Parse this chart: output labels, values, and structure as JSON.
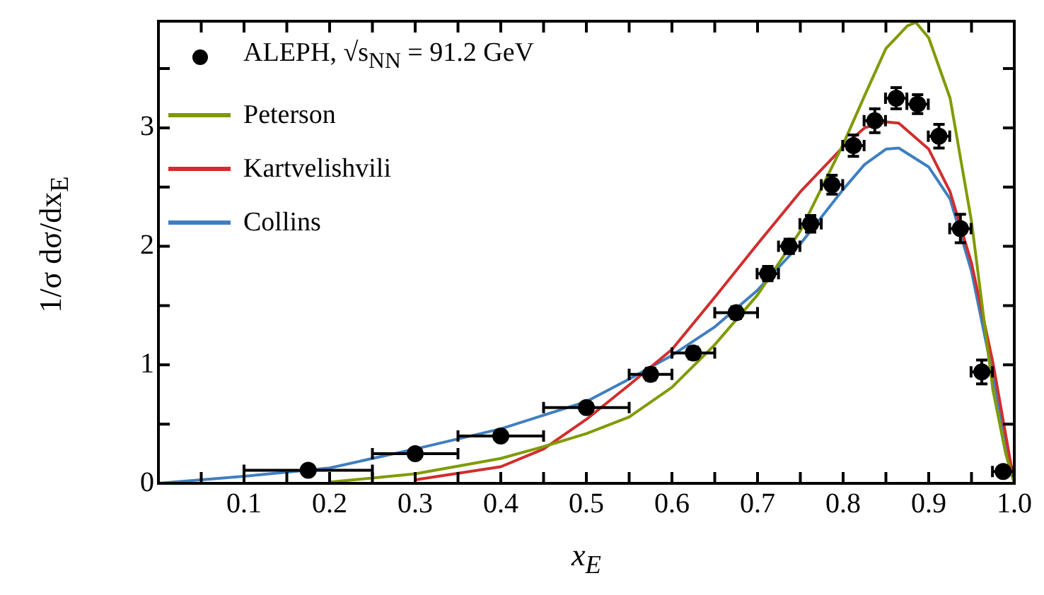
{
  "chart_data": {
    "type": "scatter",
    "xlabel": "x$_{E}$",
    "ylabel": "1/σ dσ/dx$_{E}$",
    "xlim": [
      0,
      1
    ],
    "ylim": [
      0,
      3.9
    ],
    "xticks": [
      {
        "value": 0.05,
        "label": null
      },
      0.1,
      {
        "value": 0.15,
        "label": null
      },
      0.2,
      {
        "value": 0.25,
        "label": null
      },
      0.3,
      {
        "value": 0.35,
        "label": null
      },
      0.4,
      {
        "value": 0.45,
        "label": null
      },
      0.5,
      {
        "value": 0.55,
        "label": null
      },
      0.6,
      {
        "value": 0.65,
        "label": null
      },
      0.7,
      {
        "value": 0.75,
        "label": null
      },
      0.8,
      {
        "value": 0.85,
        "label": null
      },
      0.9,
      {
        "value": 0.95,
        "label": null
      },
      {
        "value": 1,
        "label": "1.0"
      }
    ],
    "yticks": [
      0,
      {
        "value": 0.5,
        "label": null
      },
      1,
      {
        "value": 1.5,
        "label": null
      },
      2,
      {
        "value": 2.5,
        "label": null
      },
      3,
      {
        "value": 3.5,
        "label": null
      }
    ],
    "grid": false,
    "legend": "top left",
    "series": [
      {
        "name": "ALEPH, √s$_{NN}$ = 91.2 GeV",
        "color": "#000000",
        "marker": "circle",
        "x": [
          0.175,
          0.3,
          0.4,
          0.5,
          0.575,
          0.625,
          0.675,
          0.712,
          0.737,
          0.762,
          0.787,
          0.812,
          0.837,
          0.862,
          0.887,
          0.912,
          0.937,
          0.962,
          0.987
        ],
        "values": [
          0.11,
          0.25,
          0.4,
          0.64,
          0.92,
          1.1,
          1.44,
          1.77,
          2.0,
          2.19,
          2.52,
          2.85,
          3.06,
          3.25,
          3.2,
          2.93,
          2.15,
          0.94,
          0.1
        ],
        "errors": [
          null,
          null,
          null,
          0.04,
          0.05,
          0.05,
          0.05,
          0.06,
          0.06,
          0.07,
          0.08,
          0.09,
          0.1,
          0.09,
          0.08,
          0.1,
          0.12,
          0.1,
          null
        ],
        "xerrors": [
          [
            0.1,
            0.25
          ],
          [
            0.25,
            0.35
          ],
          [
            0.35,
            0.45
          ],
          [
            0.45,
            0.55
          ],
          [
            0.55,
            0.6
          ],
          [
            0.6,
            0.65
          ],
          [
            0.65,
            0.7
          ],
          0.0125,
          0.0125,
          0.0125,
          0.0125,
          0.0125,
          0.0125,
          0.0125,
          0.0125,
          0.0125,
          0.0125,
          0.0125,
          0.0125
        ]
      },
      {
        "name": "Peterson",
        "type": "line",
        "color": "#7f9b00",
        "marker": "none",
        "x": [
          0.2,
          0.3,
          0.4,
          0.45,
          0.5,
          0.55,
          0.6,
          0.65,
          0.7,
          0.75,
          0.8,
          0.825,
          0.85,
          0.875,
          0.885,
          0.9,
          0.925,
          0.95,
          0.975,
          0.99,
          1.0
        ],
        "values": [
          0.01,
          0.08,
          0.21,
          0.31,
          0.42,
          0.56,
          0.81,
          1.17,
          1.59,
          2.13,
          2.86,
          3.27,
          3.67,
          3.86,
          3.89,
          3.76,
          3.25,
          2.21,
          0.79,
          0.25,
          0
        ]
      },
      {
        "name": "Kartvelishvili",
        "type": "line",
        "color": "#d02e2e",
        "marker": "none",
        "x": [
          0.3,
          0.4,
          0.45,
          0.5,
          0.55,
          0.6,
          0.65,
          0.7,
          0.75,
          0.8,
          0.825,
          0.85,
          0.865,
          0.9,
          0.925,
          0.95,
          0.975,
          1.0
        ],
        "values": [
          0.03,
          0.14,
          0.29,
          0.54,
          0.83,
          1.13,
          1.57,
          2.02,
          2.46,
          2.84,
          3.0,
          3.05,
          3.04,
          2.82,
          2.46,
          1.86,
          1.02,
          0
        ]
      },
      {
        "name": "Collins",
        "type": "line",
        "color": "#3f7fc0",
        "marker": "none",
        "x": [
          0,
          0.1,
          0.2,
          0.3,
          0.4,
          0.5,
          0.55,
          0.6,
          0.65,
          0.7,
          0.75,
          0.8,
          0.825,
          0.85,
          0.865,
          0.9,
          0.925,
          0.95,
          0.975,
          1.0
        ],
        "values": [
          0,
          0.06,
          0.13,
          0.29,
          0.46,
          0.69,
          0.88,
          1.08,
          1.32,
          1.63,
          2.02,
          2.48,
          2.69,
          2.82,
          2.83,
          2.67,
          2.4,
          1.79,
          0.91,
          0
        ]
      }
    ]
  }
}
